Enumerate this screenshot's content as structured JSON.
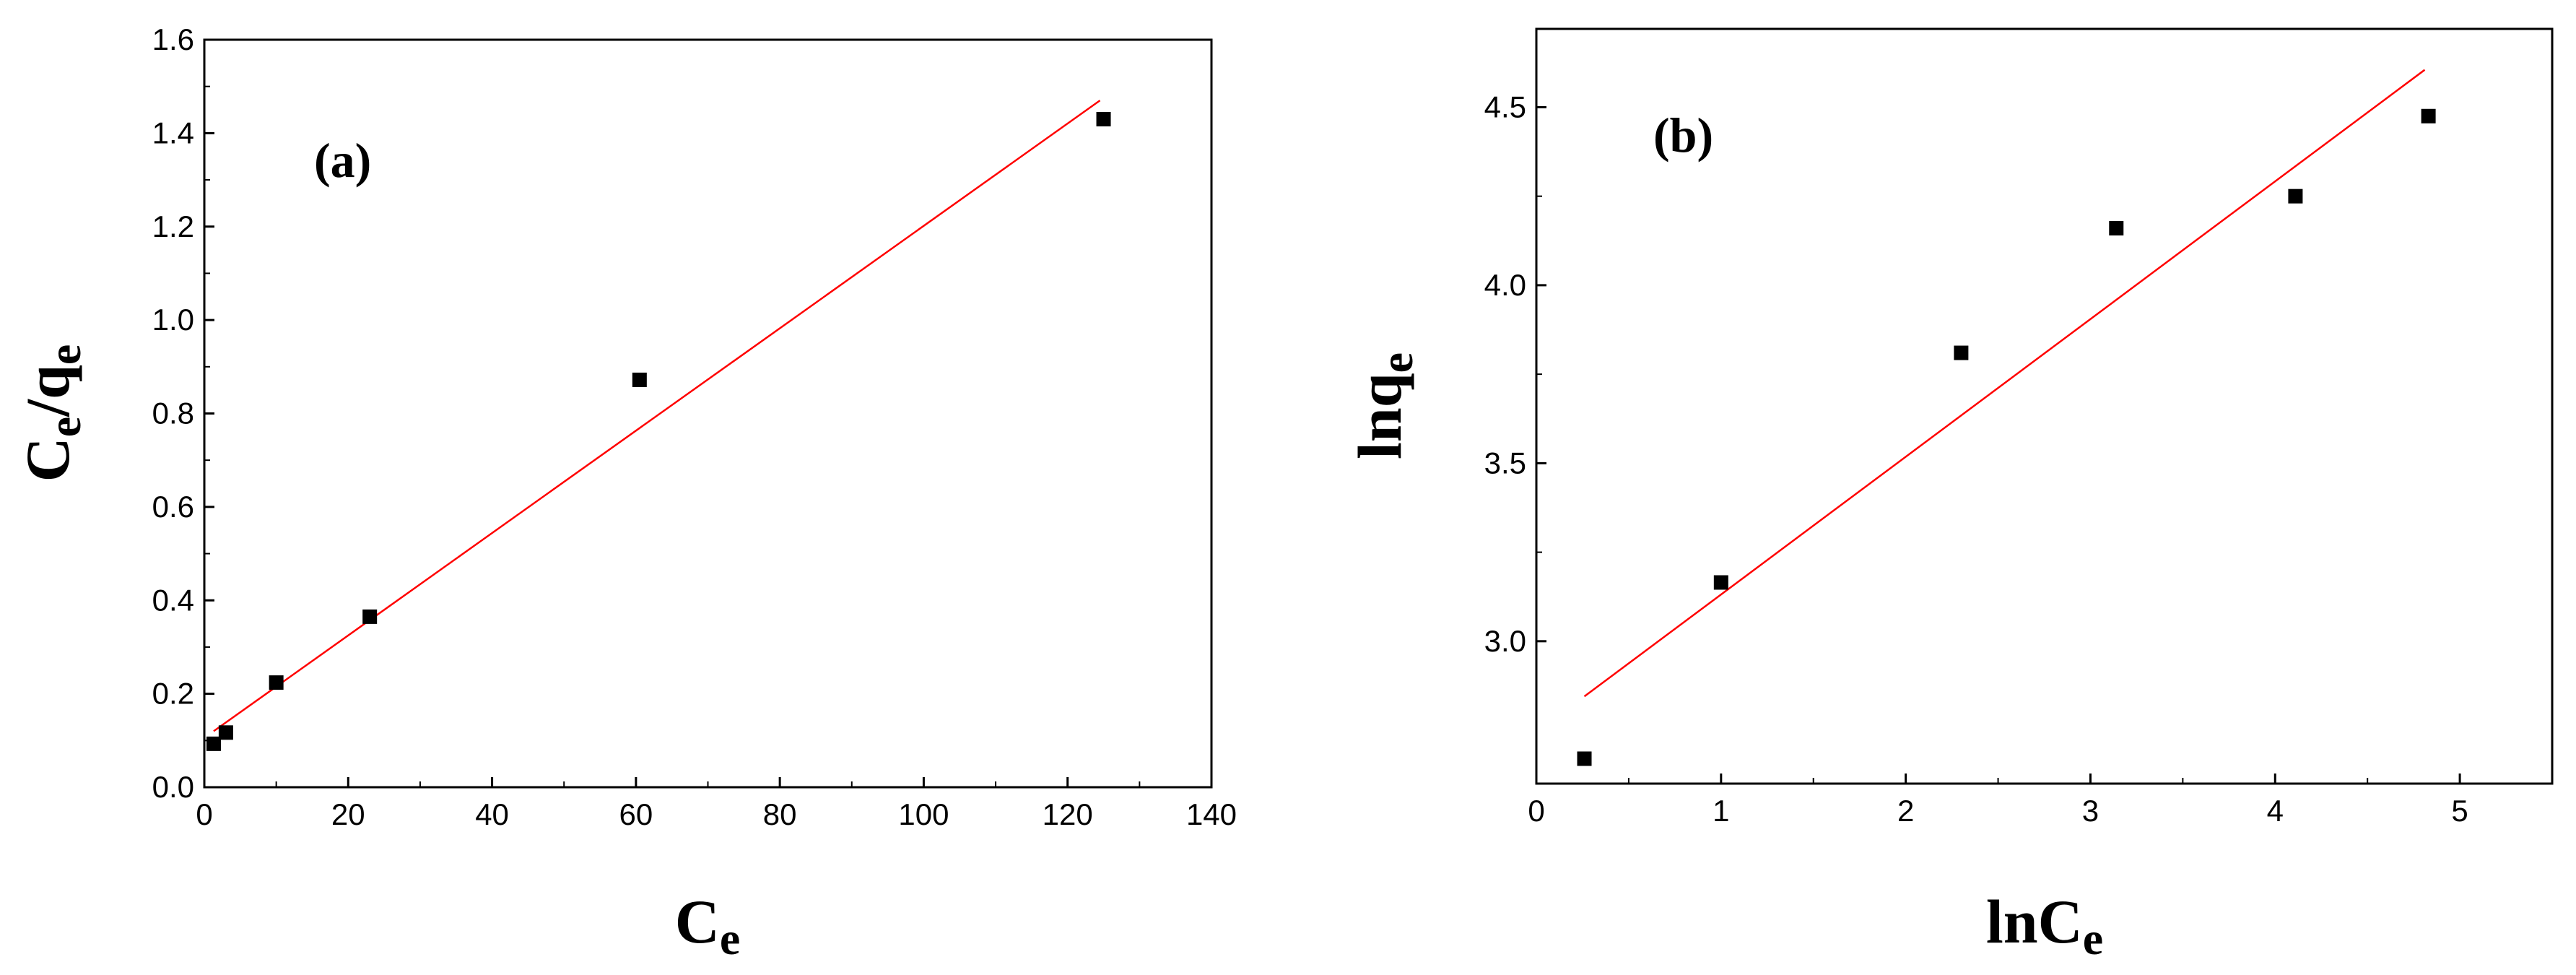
{
  "chart_data": [
    {
      "type": "scatter",
      "panel_label": "(a)",
      "xlabel": "Ce",
      "xlabel_base": "C",
      "xlabel_sub": "e",
      "ylabel": "Ce/qe",
      "ylabel_parts": [
        "C",
        "e",
        "/q",
        "e"
      ],
      "xlim": [
        0,
        140
      ],
      "ylim": [
        0,
        1.6
      ],
      "xticks": [
        0,
        20,
        40,
        60,
        80,
        100,
        120,
        140
      ],
      "yticks": [
        0.0,
        0.2,
        0.4,
        0.6,
        0.8,
        1.0,
        1.2,
        1.4,
        1.6
      ],
      "xtick_labels": [
        "0",
        "20",
        "40",
        "60",
        "80",
        "100",
        "120",
        "140"
      ],
      "ytick_labels": [
        "0.0",
        "0.2",
        "0.4",
        "0.6",
        "0.8",
        "1.0",
        "1.2",
        "1.4",
        "1.6"
      ],
      "points": [
        {
          "x": 1.3,
          "y": 0.093
        },
        {
          "x": 3.0,
          "y": 0.117
        },
        {
          "x": 10.0,
          "y": 0.224
        },
        {
          "x": 23.0,
          "y": 0.365
        },
        {
          "x": 60.5,
          "y": 0.872
        },
        {
          "x": 125.0,
          "y": 1.43
        }
      ],
      "fit_line": {
        "x": [
          1.3,
          124.5
        ],
        "y": [
          0.12,
          1.47
        ]
      },
      "marker_color": "#000000",
      "line_color": "#ff0000",
      "grid": false
    },
    {
      "type": "scatter",
      "panel_label": "(b)",
      "xlabel": "lnCe",
      "xlabel_base": "lnC",
      "xlabel_sub": "e",
      "ylabel": "lnqe",
      "ylabel_parts": [
        "lnq",
        "e"
      ],
      "xlim": [
        0,
        5.5
      ],
      "ylim": [
        2.6,
        4.72
      ],
      "xticks": [
        0,
        1,
        2,
        3,
        4,
        5
      ],
      "yticks": [
        3.0,
        3.5,
        4.0,
        4.5
      ],
      "xtick_labels": [
        "0",
        "1",
        "2",
        "3",
        "4",
        "5"
      ],
      "ytick_labels": [
        "3.0",
        "3.5",
        "4.0",
        "4.5"
      ],
      "points": [
        {
          "x": 0.26,
          "y": 2.67
        },
        {
          "x": 1.0,
          "y": 3.165
        },
        {
          "x": 2.3,
          "y": 3.81
        },
        {
          "x": 3.14,
          "y": 4.16
        },
        {
          "x": 4.11,
          "y": 4.25
        },
        {
          "x": 4.83,
          "y": 4.475
        }
      ],
      "fit_line": {
        "x": [
          0.26,
          4.81
        ],
        "y": [
          2.845,
          4.605
        ]
      },
      "marker_color": "#000000",
      "line_color": "#ff0000",
      "grid": false
    }
  ]
}
